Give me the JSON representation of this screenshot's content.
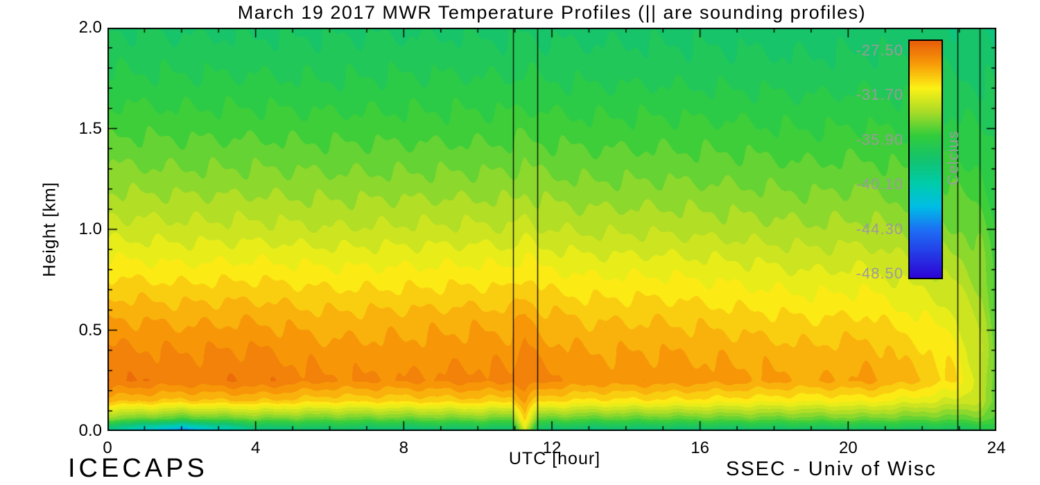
{
  "chart_data": {
    "type": "heatmap",
    "title": "March 19 2017 MWR Temperature Profiles (|| are sounding profiles)",
    "xlabel": "UTC [hour]",
    "ylabel": "Height [km]",
    "annotations": {
      "bottom_left": "ICECAPS",
      "bottom_right": "SSEC - Univ of Wisc"
    },
    "xlim": [
      0,
      24
    ],
    "ylim": [
      0,
      2
    ],
    "xtick_values": [
      0,
      4,
      8,
      12,
      16,
      20,
      24
    ],
    "xtick_labels": [
      "0",
      "4",
      "8",
      "12",
      "16",
      "20",
      "24"
    ],
    "xtick_minor_step": 1,
    "ytick_values": [
      0,
      0.5,
      1,
      1.5,
      2
    ],
    "ytick_labels": [
      "0.0",
      "0.5",
      "1.0",
      "1.5",
      "2.0"
    ],
    "ytick_minor_step": 0.1,
    "colorbar": {
      "title": "Celcius",
      "tick_labels": [
        "-27.50",
        "-31.70",
        "-35.90",
        "-40.10",
        "-44.30",
        "-48.50"
      ],
      "vmax": -27.5,
      "vmin": -48.5,
      "text_color": "#9b9b9b"
    },
    "sounding_lines_utc": [
      10.95,
      11.6,
      22.95,
      23.55
    ],
    "contour_interval": 0.7,
    "colormap_stops": [
      [
        -27.5,
        "#e85d0a"
      ],
      [
        -29.5,
        "#f89a08"
      ],
      [
        -31.7,
        "#fcf216"
      ],
      [
        -33.8,
        "#aadc28"
      ],
      [
        -35.9,
        "#32cd3c"
      ],
      [
        -38.0,
        "#14c36e"
      ],
      [
        -40.1,
        "#00cdaa"
      ],
      [
        -42.2,
        "#00bee6"
      ],
      [
        -44.3,
        "#1e6ef5"
      ],
      [
        -48.5,
        "#2d05d7"
      ]
    ],
    "grid": {
      "x_utc": [
        0,
        2,
        4,
        6,
        8,
        10,
        10.9,
        11.27,
        11.65,
        13,
        15,
        17,
        19,
        20.5,
        22,
        22.9,
        23.25,
        23.6,
        24
      ],
      "heights_km": [
        0,
        0.06,
        0.15,
        0.25,
        0.4,
        0.55,
        0.7,
        0.85,
        1.0,
        1.25,
        1.5,
        1.75,
        2.0
      ],
      "temperature_c": [
        [
          -40.0,
          -44.5,
          -39.5,
          -38.5,
          -39.0,
          -38.5,
          -38.5,
          -33.0,
          -38.5,
          -39.0,
          -38.8,
          -38.5,
          -38.3,
          -38.2,
          -38.0,
          -38.0,
          -37.6,
          -37.4,
          -37.0
        ],
        [
          -34.5,
          -35.5,
          -34.8,
          -35.0,
          -35.0,
          -34.8,
          -35.0,
          -31.0,
          -35.0,
          -35.2,
          -35.2,
          -35.0,
          -35.0,
          -34.8,
          -35.0,
          -35.1,
          -35.0,
          -35.0,
          -35.5
        ],
        [
          -30.2,
          -30.6,
          -30.4,
          -30.9,
          -30.9,
          -30.7,
          -30.9,
          -29.6,
          -30.9,
          -31.3,
          -31.3,
          -31.5,
          -31.7,
          -31.6,
          -32.3,
          -32.7,
          -32.9,
          -33.2,
          -35.0
        ],
        [
          -28.3,
          -28.6,
          -28.4,
          -29.0,
          -29.0,
          -28.8,
          -28.9,
          -28.3,
          -28.9,
          -29.3,
          -29.3,
          -29.5,
          -29.8,
          -29.6,
          -30.5,
          -31.2,
          -32.4,
          -32.9,
          -35.3
        ],
        [
          -28.9,
          -29.1,
          -29.0,
          -29.5,
          -29.5,
          -29.3,
          -29.4,
          -28.8,
          -29.4,
          -29.8,
          -29.8,
          -30.0,
          -30.3,
          -30.1,
          -31.0,
          -31.6,
          -32.6,
          -33.1,
          -35.3
        ],
        [
          -29.7,
          -29.9,
          -29.8,
          -30.2,
          -30.1,
          -30.0,
          -30.1,
          -29.5,
          -30.1,
          -30.5,
          -30.5,
          -30.8,
          -31.1,
          -31.0,
          -31.8,
          -32.3,
          -33.1,
          -33.5,
          -35.4
        ],
        [
          -30.7,
          -30.9,
          -30.8,
          -31.1,
          -31.1,
          -31.0,
          -31.1,
          -30.6,
          -31.1,
          -31.4,
          -31.4,
          -31.7,
          -32.0,
          -31.9,
          -32.6,
          -33.1,
          -33.7,
          -34.0,
          -35.5
        ],
        [
          -31.8,
          -32.0,
          -31.9,
          -32.1,
          -32.1,
          -32.0,
          -32.1,
          -31.7,
          -32.1,
          -32.4,
          -32.4,
          -32.6,
          -32.9,
          -32.8,
          -33.4,
          -33.8,
          -34.2,
          -34.5,
          -35.7
        ],
        [
          -32.9,
          -33.0,
          -33.0,
          -33.2,
          -33.1,
          -33.1,
          -33.2,
          -32.9,
          -33.2,
          -33.4,
          -33.4,
          -33.6,
          -33.8,
          -33.7,
          -34.2,
          -34.6,
          -34.8,
          -35.0,
          -35.9
        ],
        [
          -34.3,
          -34.4,
          -34.4,
          -34.5,
          -34.5,
          -34.5,
          -34.5,
          -34.3,
          -34.5,
          -34.7,
          -34.7,
          -34.8,
          -35.0,
          -34.9,
          -35.3,
          -35.6,
          -35.7,
          -35.9,
          -36.3
        ],
        [
          -35.5,
          -35.6,
          -35.6,
          -35.7,
          -35.7,
          -35.7,
          -35.7,
          -35.5,
          -35.7,
          -35.8,
          -35.8,
          -35.9,
          -36.1,
          -36.0,
          -36.3,
          -36.6,
          -36.6,
          -36.8,
          -36.9
        ],
        [
          -36.6,
          -36.7,
          -36.7,
          -36.8,
          -36.7,
          -36.7,
          -36.8,
          -36.6,
          -36.8,
          -36.9,
          -36.9,
          -37.0,
          -37.1,
          -37.0,
          -37.2,
          -37.4,
          -37.5,
          -37.5,
          -37.6
        ],
        [
          -37.5,
          -37.6,
          -37.6,
          -37.6,
          -37.6,
          -37.6,
          -37.7,
          -37.5,
          -37.7,
          -37.7,
          -37.7,
          -37.8,
          -37.9,
          -37.8,
          -38.0,
          -38.1,
          -38.1,
          -38.2,
          -38.2
        ]
      ]
    }
  }
}
